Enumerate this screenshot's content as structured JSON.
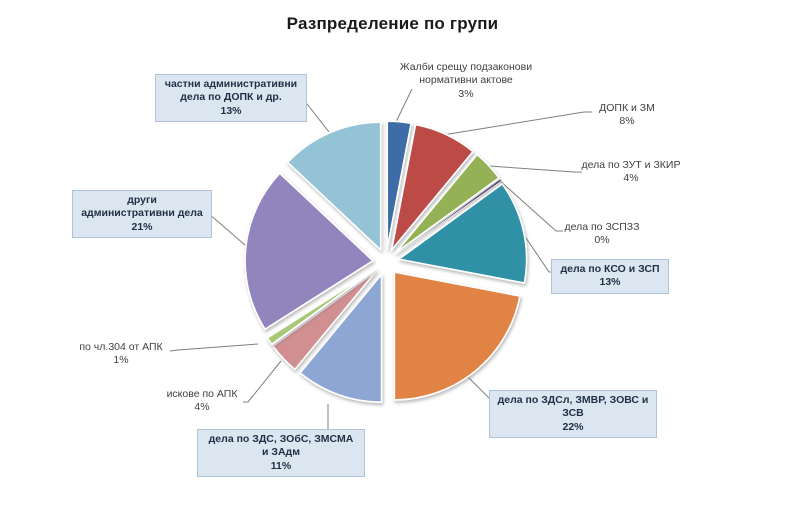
{
  "chart_data": {
    "type": "pie",
    "title": "Разпределение по групи",
    "unit": "%",
    "direction": "clockwise",
    "start_angle_deg": 0,
    "exploded": true,
    "legend": "none",
    "leader_line_color": "#7f7f7f",
    "label_box_fill": "#dce6f1",
    "label_box_border": "#b0c2d8",
    "slices": [
      {
        "label": "Жалби срещу подзаконови нормативни актове",
        "value": 3,
        "pct": "3%",
        "color": "#3e6ca6",
        "boxed": false
      },
      {
        "label": "ДОПК и ЗМ",
        "value": 8,
        "pct": "8%",
        "color": "#bc4b47",
        "boxed": false
      },
      {
        "label": "дела по ЗУТ и ЗКИР",
        "value": 4,
        "pct": "4%",
        "color": "#95b155",
        "boxed": false
      },
      {
        "label": "дела по ЗСПЗЗ",
        "value": 0,
        "pct": "0%",
        "color": "#514b72",
        "boxed": false
      },
      {
        "label": "дела по КСО и ЗСП",
        "value": 13,
        "pct": "13%",
        "color": "#2f90a6",
        "boxed": true
      },
      {
        "label": "дела по ЗДСл, ЗМВР, ЗОВС и ЗСВ",
        "value": 22,
        "pct": "22%",
        "color": "#e08344",
        "boxed": true
      },
      {
        "label": "дела по ЗДС, ЗОбС, ЗМСМА и ЗАдм",
        "value": 11,
        "pct": "11%",
        "color": "#8ea6d4",
        "boxed": true
      },
      {
        "label": "искове по АПК",
        "value": 4,
        "pct": "4%",
        "color": "#d18f92",
        "boxed": false
      },
      {
        "label": "по чл.304 от АПК",
        "value": 1,
        "pct": "1%",
        "color": "#a8c878",
        "boxed": false
      },
      {
        "label": "други административни дела",
        "value": 21,
        "pct": "21%",
        "color": "#9285bd",
        "boxed": true
      },
      {
        "label": "частни административни дела по ДОПК и др.",
        "value": 13,
        "pct": "13%",
        "color": "#94c3d6",
        "boxed": true
      }
    ]
  }
}
